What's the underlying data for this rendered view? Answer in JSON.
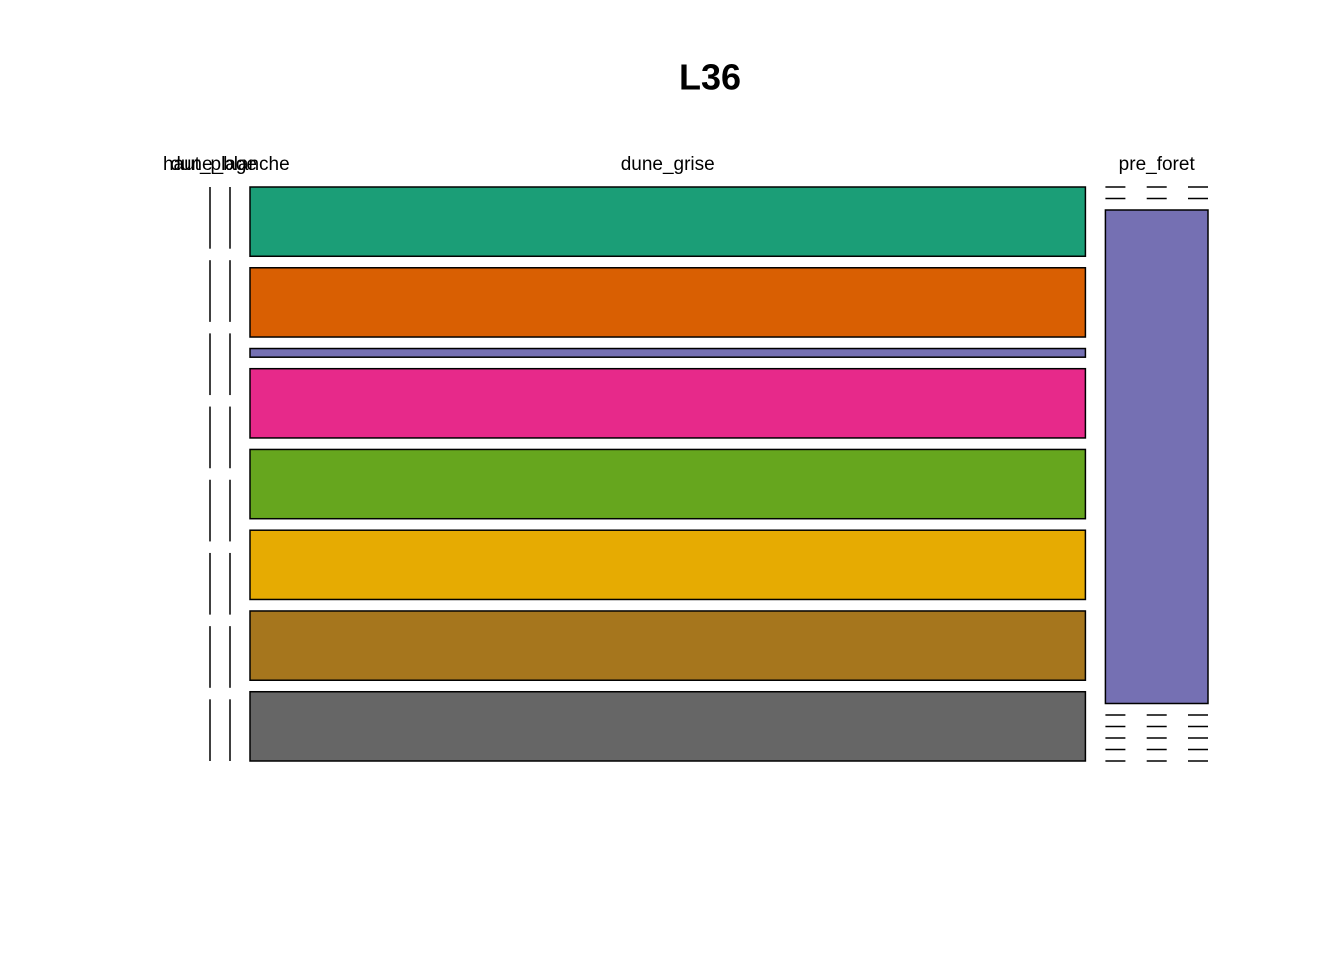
{
  "chart_data": {
    "type": "mosaic",
    "title": "L36",
    "categories": [
      "haut_plage",
      "dune_blanche",
      "dune_grise",
      "pre_foret"
    ],
    "series": [
      {
        "color": "#1B9E77",
        "values": [
          0,
          0,
          8,
          0
        ]
      },
      {
        "color": "#D95F02",
        "values": [
          0,
          0,
          8,
          0
        ]
      },
      {
        "color": "#7570B3",
        "values": [
          0,
          0,
          1,
          7
        ]
      },
      {
        "color": "#E7298A",
        "values": [
          0,
          0,
          8,
          0
        ]
      },
      {
        "color": "#66A61E",
        "values": [
          0,
          0,
          8,
          0
        ]
      },
      {
        "color": "#E6AB02",
        "values": [
          0,
          0,
          8,
          0
        ]
      },
      {
        "color": "#A6761D",
        "values": [
          0,
          0,
          8,
          0
        ]
      },
      {
        "color": "#666666",
        "values": [
          0,
          0,
          8,
          0
        ]
      }
    ]
  }
}
